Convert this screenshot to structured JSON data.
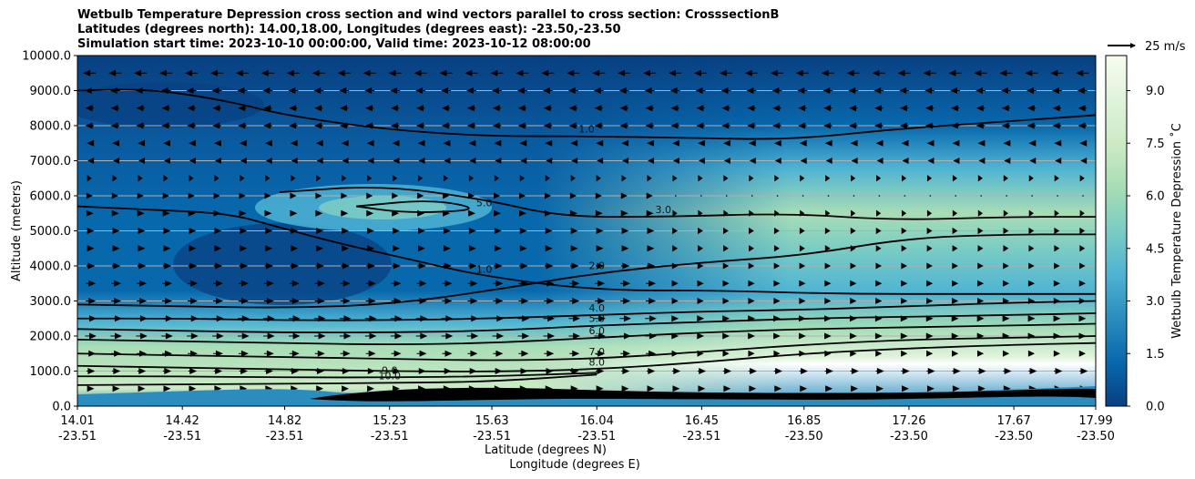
{
  "title": {
    "line1": "Wetbulb Temperature Depression cross section and wind vectors parallel to cross section: CrosssectionB",
    "line2": "Latitudes (degrees north): 14.00,18.00, Longitudes (degrees east): -23.50,-23.50",
    "line3": "Simulation start time: 2023-10-10 00:00:00, Valid time: 2023-10-12 08:00:00"
  },
  "quiver_key": {
    "label": "25 m/s"
  },
  "colors": {
    "colormap": [
      "#084081",
      "#0868ac",
      "#2b8cbe",
      "#4eb3d3",
      "#7bccc4",
      "#a8ddb5",
      "#ccebc5",
      "#e0f3db",
      "#f7fcf0"
    ],
    "contour_line": "#000000",
    "grid": "#b0b0b0"
  },
  "chart_data": {
    "type": "heatmap",
    "xlabel": "Latitude (degrees N)",
    "xlabel2": "Longitude (degrees E)",
    "ylabel": "Altitude (meters)",
    "colorbar_label": "Wetbulb Temperature Depression ˚C",
    "ylim": [
      0,
      10000
    ],
    "xlim": [
      14.01,
      17.99
    ],
    "clim": [
      0,
      10
    ],
    "grid": "horizontal",
    "x_ticks": [
      {
        "lat": "14.01",
        "lon": "-23.51"
      },
      {
        "lat": "14.42",
        "lon": "-23.51"
      },
      {
        "lat": "14.82",
        "lon": "-23.51"
      },
      {
        "lat": "15.23",
        "lon": "-23.51"
      },
      {
        "lat": "15.63",
        "lon": "-23.51"
      },
      {
        "lat": "16.04",
        "lon": "-23.51"
      },
      {
        "lat": "16.45",
        "lon": "-23.51"
      },
      {
        "lat": "16.85",
        "lon": "-23.50"
      },
      {
        "lat": "17.26",
        "lon": "-23.50"
      },
      {
        "lat": "17.67",
        "lon": "-23.50"
      },
      {
        "lat": "17.99",
        "lon": "-23.50"
      }
    ],
    "y_ticks": [
      "0.0",
      "1000.0",
      "2000.0",
      "3000.0",
      "4000.0",
      "5000.0",
      "6000.0",
      "7000.0",
      "8000.0",
      "9000.0",
      "10000.0"
    ],
    "colorbar_ticks": [
      "0.0",
      "1.5",
      "3.0",
      "4.5",
      "6.0",
      "7.5",
      "9.0"
    ],
    "contour_labels": [
      "1.0",
      "2.0",
      "3.0",
      "4.0",
      "5.0",
      "6.0",
      "7.0",
      "8.0",
      "9.0",
      "10.0"
    ],
    "contours": [
      {
        "level": 1.0,
        "points": [
          [
            14.01,
            9000
          ],
          [
            14.3,
            9050
          ],
          [
            14.6,
            8700
          ],
          [
            14.82,
            8300
          ],
          [
            15.2,
            7900
          ],
          [
            15.6,
            7700
          ],
          [
            16.0,
            7700
          ],
          [
            16.4,
            7650
          ],
          [
            16.8,
            7600
          ],
          [
            17.2,
            7900
          ],
          [
            17.6,
            8100
          ],
          [
            17.99,
            8300
          ]
        ]
      },
      {
        "level": 1.0,
        "points": [
          [
            14.01,
            5700
          ],
          [
            14.3,
            5600
          ],
          [
            14.6,
            5500
          ],
          [
            14.8,
            5100
          ],
          [
            15.0,
            4700
          ],
          [
            15.3,
            4200
          ],
          [
            15.6,
            3700
          ],
          [
            16.04,
            3300
          ],
          [
            16.5,
            3300
          ],
          [
            17.0,
            3200
          ],
          [
            17.5,
            3200
          ],
          [
            17.99,
            3200
          ]
        ]
      },
      {
        "level": 2.0,
        "points": [
          [
            14.01,
            2900
          ],
          [
            14.4,
            2850
          ],
          [
            14.82,
            2800
          ],
          [
            15.23,
            2900
          ],
          [
            15.63,
            3300
          ],
          [
            16.04,
            3800
          ],
          [
            16.45,
            4100
          ],
          [
            16.85,
            4300
          ],
          [
            17.26,
            4800
          ],
          [
            17.67,
            4900
          ],
          [
            17.99,
            4900
          ]
        ]
      },
      {
        "level": 3.0,
        "points": [
          [
            14.8,
            6100
          ],
          [
            15.2,
            6300
          ],
          [
            15.6,
            5900
          ],
          [
            15.9,
            5400
          ],
          [
            16.3,
            5400
          ],
          [
            16.8,
            5500
          ],
          [
            17.2,
            5300
          ],
          [
            17.67,
            5400
          ],
          [
            17.99,
            5400
          ]
        ]
      },
      {
        "level": 4.0,
        "points": [
          [
            14.01,
            2500
          ],
          [
            14.4,
            2500
          ],
          [
            14.82,
            2450
          ],
          [
            15.23,
            2450
          ],
          [
            15.63,
            2500
          ],
          [
            16.04,
            2600
          ],
          [
            16.45,
            2700
          ],
          [
            16.85,
            2750
          ],
          [
            17.26,
            2850
          ],
          [
            17.67,
            2950
          ],
          [
            17.99,
            3000
          ]
        ]
      },
      {
        "level": 5.0,
        "points": [
          [
            14.01,
            2200
          ],
          [
            14.4,
            2150
          ],
          [
            14.82,
            2100
          ],
          [
            15.23,
            2100
          ],
          [
            15.63,
            2150
          ],
          [
            16.04,
            2300
          ],
          [
            16.45,
            2400
          ],
          [
            16.85,
            2500
          ],
          [
            17.26,
            2550
          ],
          [
            17.67,
            2600
          ],
          [
            17.99,
            2650
          ]
        ]
      },
      {
        "level": 5.0,
        "points": [
          [
            15.1,
            5700
          ],
          [
            15.4,
            5900
          ],
          [
            15.6,
            5600
          ],
          [
            15.3,
            5500
          ],
          [
            15.1,
            5700
          ]
        ]
      },
      {
        "level": 6.0,
        "points": [
          [
            14.01,
            1900
          ],
          [
            14.4,
            1850
          ],
          [
            14.82,
            1800
          ],
          [
            15.23,
            1750
          ],
          [
            15.63,
            1800
          ],
          [
            16.04,
            1950
          ],
          [
            16.45,
            2100
          ],
          [
            16.85,
            2200
          ],
          [
            17.26,
            2250
          ],
          [
            17.67,
            2300
          ],
          [
            17.99,
            2350
          ]
        ]
      },
      {
        "level": 7.0,
        "points": [
          [
            14.01,
            1500
          ],
          [
            14.4,
            1450
          ],
          [
            14.82,
            1400
          ],
          [
            15.23,
            1350
          ],
          [
            15.63,
            1300
          ],
          [
            16.04,
            1350
          ],
          [
            16.45,
            1550
          ],
          [
            16.85,
            1750
          ],
          [
            17.26,
            1900
          ],
          [
            17.67,
            1950
          ],
          [
            17.99,
            2000
          ]
        ]
      },
      {
        "level": 8.0,
        "points": [
          [
            14.01,
            1150
          ],
          [
            14.4,
            1100
          ],
          [
            14.82,
            1050
          ],
          [
            15.23,
            1000
          ],
          [
            15.63,
            980
          ],
          [
            16.04,
            1050
          ],
          [
            16.45,
            1250
          ],
          [
            16.85,
            1500
          ],
          [
            17.26,
            1650
          ],
          [
            17.67,
            1750
          ],
          [
            17.99,
            1800
          ]
        ]
      },
      {
        "level": 9.0,
        "points": [
          [
            14.01,
            850
          ],
          [
            14.4,
            850
          ],
          [
            14.82,
            820
          ],
          [
            15.23,
            820
          ],
          [
            15.63,
            850
          ],
          [
            16.04,
            950
          ]
        ]
      },
      {
        "level": 10.0,
        "points": [
          [
            14.01,
            600
          ],
          [
            14.4,
            620
          ],
          [
            14.82,
            640
          ],
          [
            15.23,
            660
          ],
          [
            15.63,
            700
          ],
          [
            16.04,
            900
          ]
        ]
      }
    ],
    "wind": [
      {
        "z": 9500,
        "u": -8
      },
      {
        "z": 9000,
        "u": -6
      },
      {
        "z": 8500,
        "u": -5
      },
      {
        "z": 8000,
        "u": -5
      },
      {
        "z": 7500,
        "u": -3
      },
      {
        "z": 7000,
        "u": -2
      },
      {
        "z": 6500,
        "u": 1
      },
      {
        "z": 6000,
        "u": 2
      },
      {
        "z": 5500,
        "u": 3
      },
      {
        "z": 5000,
        "u": 4
      },
      {
        "z": 4500,
        "u": 4
      },
      {
        "z": 4000,
        "u": 5
      },
      {
        "z": 3500,
        "u": 6
      },
      {
        "z": 3000,
        "u": 6
      },
      {
        "z": 2500,
        "u": 7
      },
      {
        "z": 2000,
        "u": 7
      },
      {
        "z": 1500,
        "u": 6
      },
      {
        "z": 1000,
        "u": 5
      },
      {
        "z": 500,
        "u": 4
      }
    ]
  }
}
